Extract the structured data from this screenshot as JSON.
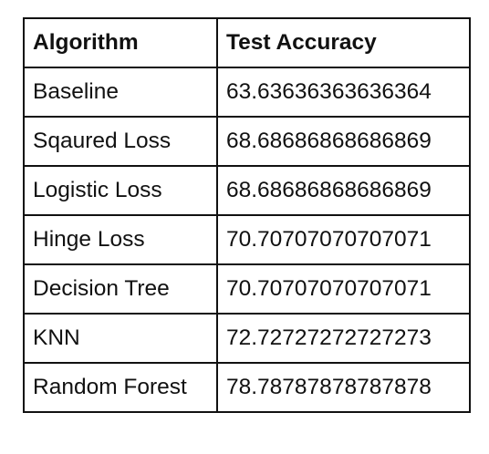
{
  "table": {
    "headers": [
      "Algorithm",
      "Test Accuracy"
    ],
    "rows": [
      {
        "algorithm": "Baseline",
        "accuracy": "63.63636363636364"
      },
      {
        "algorithm": "Sqaured Loss",
        "accuracy": "68.68686868686869"
      },
      {
        "algorithm": "Logistic Loss",
        "accuracy": "68.68686868686869"
      },
      {
        "algorithm": "Hinge Loss",
        "accuracy": "70.70707070707071"
      },
      {
        "algorithm": "Decision Tree",
        "accuracy": "70.70707070707071"
      },
      {
        "algorithm": "KNN",
        "accuracy": "72.72727272727273"
      },
      {
        "algorithm": "Random Forest",
        "accuracy": "78.78787878787878"
      }
    ]
  }
}
